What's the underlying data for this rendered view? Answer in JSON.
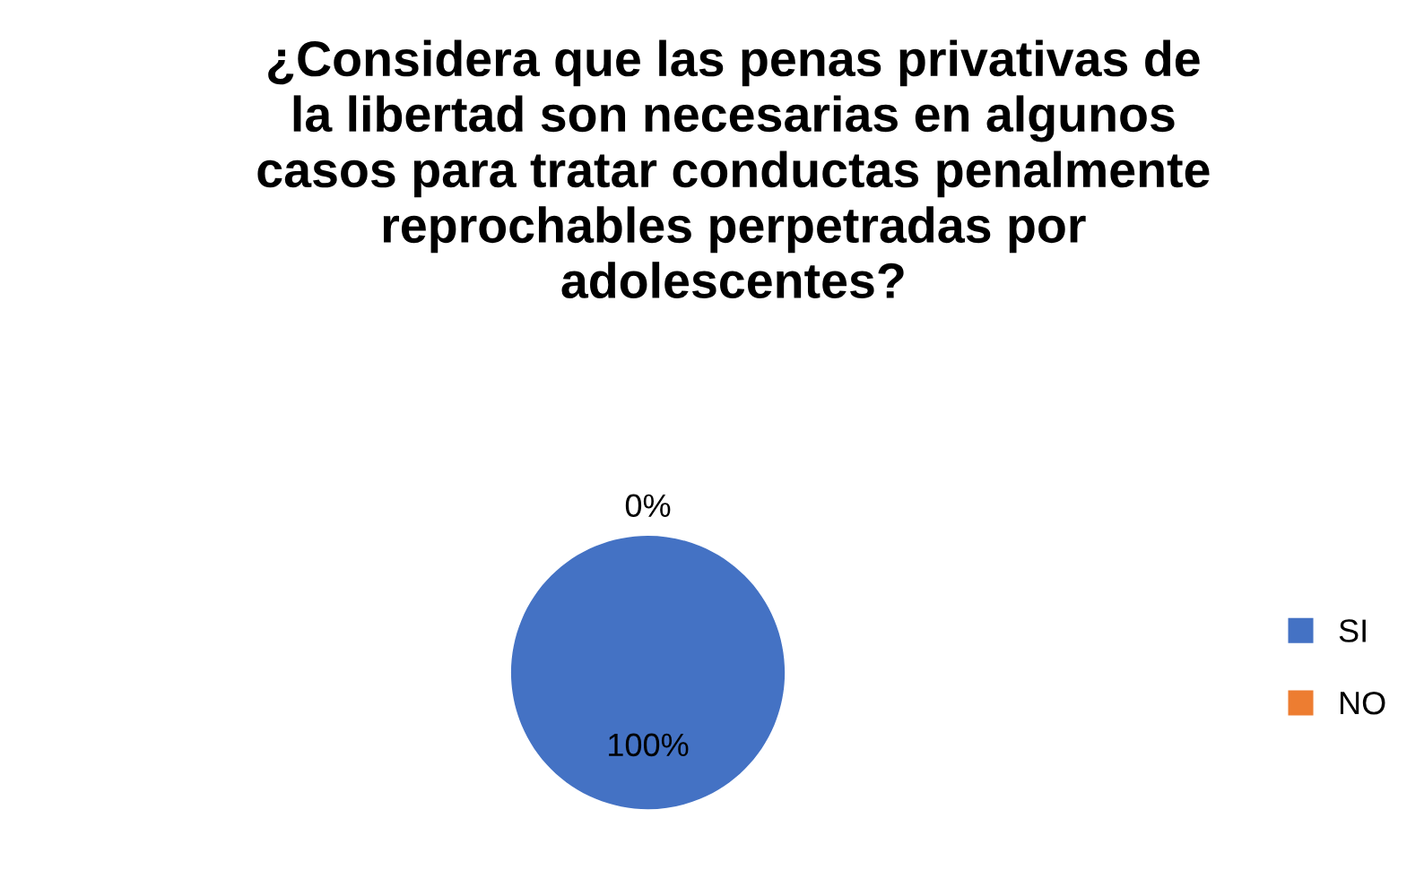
{
  "chart_data": {
    "type": "pie",
    "title": "¿Considera que las penas privativas de\nla libertad son necesarias en algunos\ncasos para tratar conductas penalmente\nreprochables perpetradas por\nadolescentes?",
    "categories": [
      "SI",
      "NO"
    ],
    "values": [
      100,
      0
    ],
    "colors": [
      "#4472c4",
      "#ed7d31"
    ],
    "value_labels": [
      "100%",
      "0%"
    ],
    "legend": "right"
  }
}
